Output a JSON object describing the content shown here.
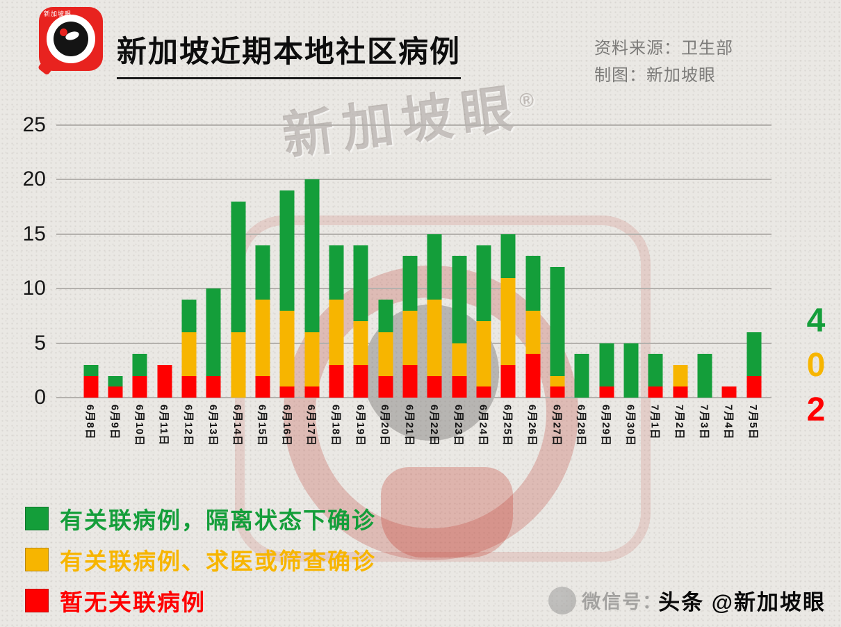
{
  "header": {
    "logo_text": "新加坡眼",
    "title": "新加坡近期本地社区病例",
    "source_line1": "资料来源：卫生部",
    "source_line2": "制图：新加坡眼"
  },
  "chart_data": {
    "type": "bar",
    "stacked": true,
    "title": "新加坡近期本地社区病例",
    "categories": [
      "6月8日",
      "6月9日",
      "6月10日",
      "6月11日",
      "6月12日",
      "6月13日",
      "6月14日",
      "6月15日",
      "6月16日",
      "6月17日",
      "6月18日",
      "6月19日",
      "6月20日",
      "6月21日",
      "6月22日",
      "6月23日",
      "6月24日",
      "6月25日",
      "6月26日",
      "6月27日",
      "6月28日",
      "6月29日",
      "6月30日",
      "7月1日",
      "7月2日",
      "7月3日",
      "7月4日",
      "7月5日"
    ],
    "series": [
      {
        "name": "暂无关联病例",
        "color": "#ff0000",
        "stack_order": "bottom",
        "values": [
          2,
          1,
          2,
          3,
          2,
          2,
          0,
          2,
          1,
          1,
          3,
          3,
          2,
          3,
          2,
          2,
          1,
          3,
          4,
          1,
          0,
          1,
          0,
          1,
          1,
          0,
          1,
          2
        ]
      },
      {
        "name": "有关联病例、求医或筛查确诊",
        "color": "#f7b500",
        "stack_order": "middle",
        "values": [
          0,
          0,
          0,
          0,
          4,
          0,
          6,
          7,
          7,
          5,
          6,
          4,
          4,
          5,
          7,
          3,
          6,
          8,
          4,
          1,
          0,
          0,
          0,
          0,
          2,
          0,
          0,
          0
        ]
      },
      {
        "name": "有关联病例，隔离状态下确诊",
        "color": "#149e3a",
        "stack_order": "top",
        "values": [
          1,
          1,
          2,
          0,
          3,
          8,
          12,
          5,
          11,
          14,
          5,
          7,
          3,
          5,
          6,
          8,
          7,
          4,
          5,
          10,
          4,
          4,
          5,
          3,
          0,
          4,
          0,
          4
        ]
      }
    ],
    "ylim": [
      0,
      25
    ],
    "yticks": [
      0,
      5,
      10,
      15,
      20,
      25
    ],
    "grid": true,
    "legend_position": "bottom-left",
    "legend_order": [
      2,
      1,
      0
    ]
  },
  "latest_counts": {
    "green": "4",
    "yellow": "0",
    "red": "2"
  },
  "watermark": {
    "brand": "新加坡眼",
    "registered": "®",
    "wechat_text": "微信号：",
    "toutiao_text": "头条 @新加坡眼"
  }
}
